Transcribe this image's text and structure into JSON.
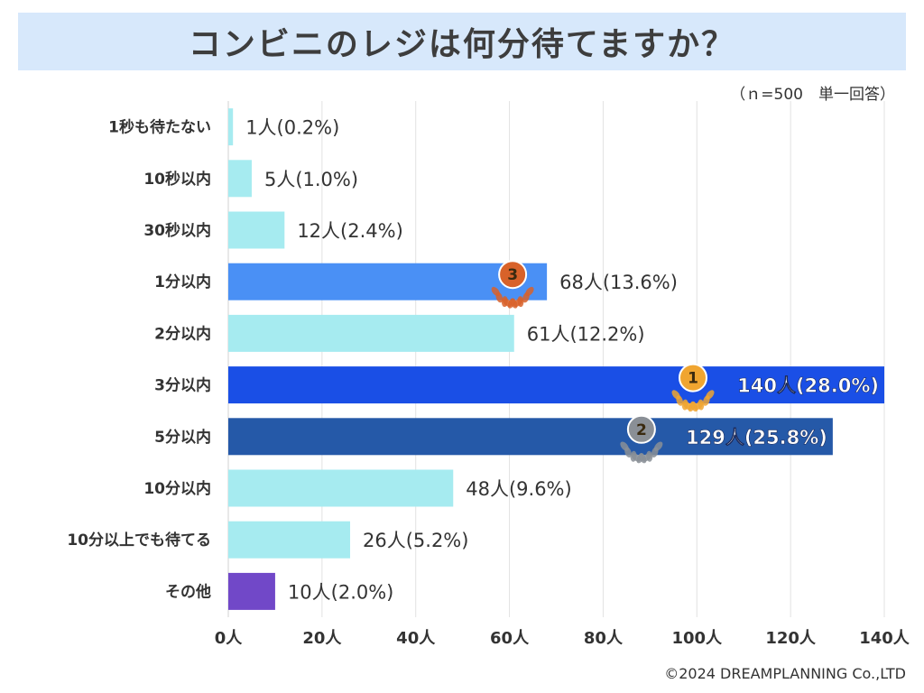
{
  "title": "コンビニのレジは何分待てますか？",
  "sample_note": "（ｎ=500　単一回答）",
  "copyright": "©2024 DREAMPLANNING Co.,LTD",
  "chart_data": {
    "type": "bar",
    "orientation": "horizontal",
    "categories": [
      "1秒も待たない",
      "10秒以内",
      "30秒以内",
      "1分以内",
      "2分以内",
      "3分以内",
      "5分以内",
      "10分以内",
      "10分以上でも待てる",
      "その他"
    ],
    "values": [
      1,
      5,
      12,
      68,
      61,
      140,
      129,
      48,
      26,
      10
    ],
    "data_labels": [
      "1人(0.2%)",
      "5人(1.0%)",
      "12人(2.4%)",
      "68人(13.6%)",
      "61人(12.2%)",
      "140人(28.0%)",
      "129人(25.8%)",
      "48人(9.6%)",
      "26人(5.2%)",
      "10人(2.0%)"
    ],
    "bar_colors": [
      "#a6ebf0",
      "#a6ebf0",
      "#a6ebf0",
      "#4a90f5",
      "#a6ebf0",
      "#1a4fe6",
      "#2559a8",
      "#a6ebf0",
      "#a6ebf0",
      "#7148c8"
    ],
    "ranks": [
      {
        "index": 5,
        "label": "1st",
        "text": "1",
        "color": "#f0a530"
      },
      {
        "index": 6,
        "label": "2nd",
        "text": "2",
        "color": "#8a8f96"
      },
      {
        "index": 3,
        "label": "3rd",
        "text": "3",
        "color": "#d8622a"
      }
    ],
    "xlim": [
      0,
      140
    ],
    "xticks": [
      0,
      20,
      40,
      60,
      80,
      100,
      120,
      140
    ],
    "xtick_labels": [
      "0人",
      "20人",
      "40人",
      "60人",
      "80人",
      "100人",
      "120人",
      "140人"
    ],
    "grid": true,
    "xlabel": "",
    "ylabel": ""
  }
}
